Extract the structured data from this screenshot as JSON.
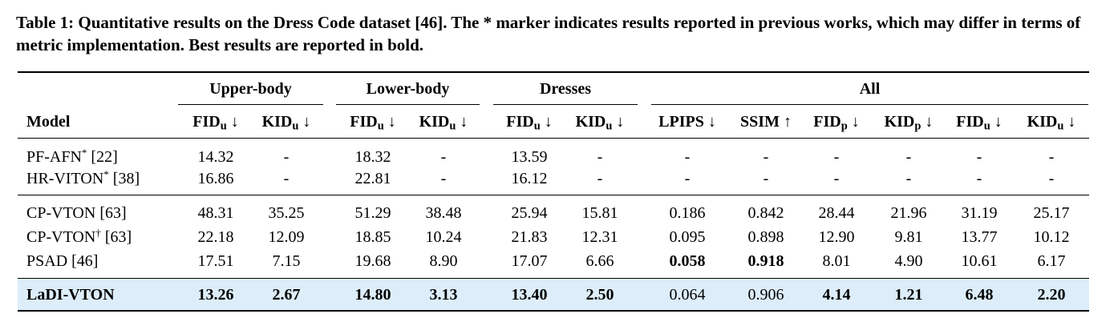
{
  "caption": "Table 1: Quantitative results on the Dress Code dataset [46]. The * marker indicates results reported in previous works, which may differ in terms of metric implementation. Best results are reported in bold.",
  "header": {
    "model": "Model",
    "groups": [
      {
        "label": "Upper-body",
        "span": 2
      },
      {
        "label": "Lower-body",
        "span": 2
      },
      {
        "label": "Dresses",
        "span": 2
      },
      {
        "label": "All",
        "span": 6
      }
    ],
    "columns": [
      {
        "name": "FID",
        "sub": "u",
        "arrow": "↓"
      },
      {
        "name": "KID",
        "sub": "u",
        "arrow": "↓"
      },
      {
        "name": "FID",
        "sub": "u",
        "arrow": "↓"
      },
      {
        "name": "KID",
        "sub": "u",
        "arrow": "↓"
      },
      {
        "name": "FID",
        "sub": "u",
        "arrow": "↓"
      },
      {
        "name": "KID",
        "sub": "u",
        "arrow": "↓"
      },
      {
        "name": "LPIPS",
        "arrow": "↓"
      },
      {
        "name": "SSIM",
        "arrow": "↑"
      },
      {
        "name": "FID",
        "sub": "p",
        "arrow": "↓"
      },
      {
        "name": "KID",
        "sub": "p",
        "arrow": "↓"
      },
      {
        "name": "FID",
        "sub": "u",
        "arrow": "↓"
      },
      {
        "name": "KID",
        "sub": "u",
        "arrow": "↓"
      }
    ]
  },
  "sections": [
    [
      {
        "model": {
          "name": "PF-AFN",
          "sup": "*",
          "ref": "[22]"
        },
        "cells": [
          "14.32",
          "-",
          "18.32",
          "-",
          "13.59",
          "-",
          "-",
          "-",
          "-",
          "-",
          "-",
          "-"
        ],
        "bold": []
      },
      {
        "model": {
          "name": "HR-VITON",
          "sup": "*",
          "ref": "[38]"
        },
        "cells": [
          "16.86",
          "-",
          "22.81",
          "-",
          "16.12",
          "-",
          "-",
          "-",
          "-",
          "-",
          "-",
          "-"
        ],
        "bold": []
      }
    ],
    [
      {
        "model": {
          "name": "CP-VTON",
          "ref": "[63]"
        },
        "cells": [
          "48.31",
          "35.25",
          "51.29",
          "38.48",
          "25.94",
          "15.81",
          "0.186",
          "0.842",
          "28.44",
          "21.96",
          "31.19",
          "25.17"
        ],
        "bold": []
      },
      {
        "model": {
          "name": "CP-VTON",
          "sup": "†",
          "ref": "[63]"
        },
        "cells": [
          "22.18",
          "12.09",
          "18.85",
          "10.24",
          "21.83",
          "12.31",
          "0.095",
          "0.898",
          "12.90",
          "9.81",
          "13.77",
          "10.12"
        ],
        "bold": []
      },
      {
        "model": {
          "name": "PSAD",
          "ref": "[46]"
        },
        "cells": [
          "17.51",
          "7.15",
          "19.68",
          "8.90",
          "17.07",
          "6.66",
          "0.058",
          "0.918",
          "8.01",
          "4.90",
          "10.61",
          "6.17"
        ],
        "bold": [
          6,
          7
        ]
      }
    ],
    [
      {
        "model": {
          "name": "LaDI-VTON",
          "bold": true
        },
        "cells": [
          "13.26",
          "2.67",
          "14.80",
          "3.13",
          "13.40",
          "2.50",
          "0.064",
          "0.906",
          "4.14",
          "1.21",
          "6.48",
          "2.20"
        ],
        "bold": [
          0,
          1,
          2,
          3,
          4,
          5,
          8,
          9,
          10,
          11
        ],
        "highlight": true
      }
    ]
  ]
}
